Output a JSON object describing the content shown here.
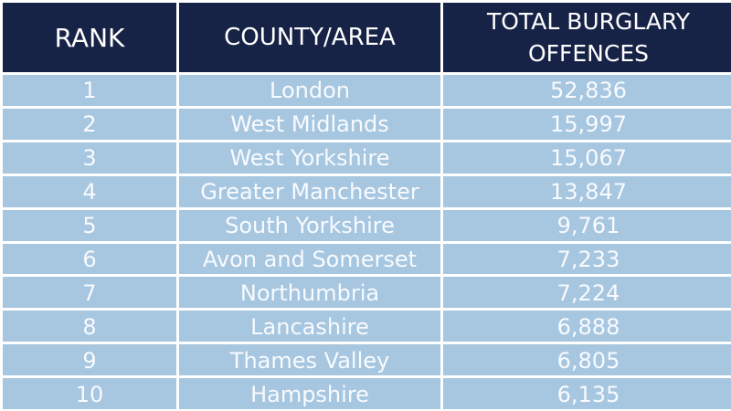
{
  "chart_data": {
    "type": "table",
    "columns": [
      "RANK",
      "COUNTY/AREA",
      "TOTAL BURGLARY\nOFFENCES"
    ],
    "rows": [
      {
        "rank": "1",
        "area": "London",
        "total": "52,836"
      },
      {
        "rank": "2",
        "area": "West Midlands",
        "total": "15,997"
      },
      {
        "rank": "3",
        "area": "West Yorkshire",
        "total": "15,067"
      },
      {
        "rank": "4",
        "area": "Greater Manchester",
        "total": "13,847"
      },
      {
        "rank": "5",
        "area": "South Yorkshire",
        "total": "9,761"
      },
      {
        "rank": "6",
        "area": "Avon and Somerset",
        "total": "7,233"
      },
      {
        "rank": "7",
        "area": "Northumbria",
        "total": "7,224"
      },
      {
        "rank": "8",
        "area": "Lancashire",
        "total": "6,888"
      },
      {
        "rank": "9",
        "area": "Thames Valley",
        "total": "6,805"
      },
      {
        "rank": "10",
        "area": "Hampshire",
        "total": "6,135"
      }
    ]
  },
  "colors": {
    "header_background": "#172346",
    "header_text": "#ffffff",
    "row_background": "#a7c6df",
    "row_text": "#f8fbff",
    "grid_line": "#ffffff"
  }
}
